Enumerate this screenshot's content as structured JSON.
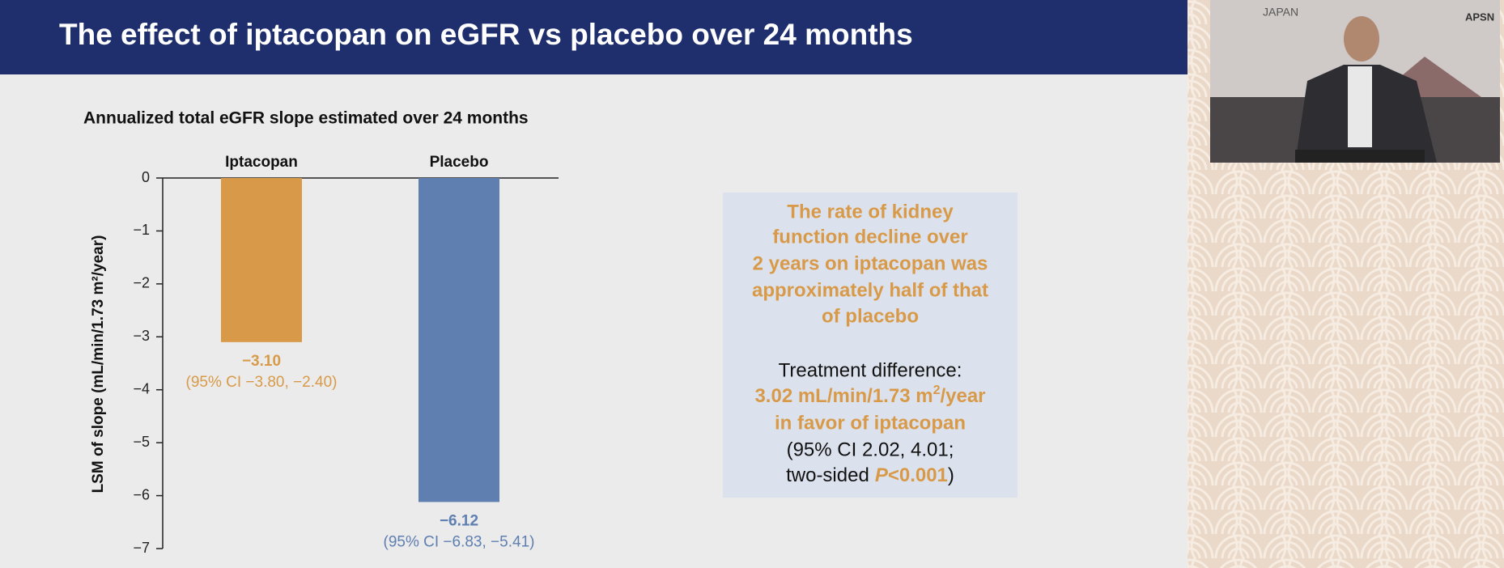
{
  "slide": {
    "title": "The effect of iptacopan on eGFR vs placebo over 24 months"
  },
  "chart_data": {
    "type": "bar",
    "title": "Annualized total eGFR slope estimated over 24 months",
    "y_label": "LSM of slope (mL/min/1.73 m²/year)",
    "categories": [
      "Iptacopan",
      "Placebo"
    ],
    "values": [
      -3.1,
      -6.12
    ],
    "value_labels": [
      "−3.10",
      "−6.12"
    ],
    "annotations": [
      "(95% CI −3.80, −2.40)",
      "(95% CI −6.83, −5.41)"
    ],
    "colors": [
      "#d89a48",
      "#5f7fb1"
    ],
    "ylim": [
      -7,
      0
    ],
    "yticks": [
      0,
      {
        "value": -1,
        "label": "−1"
      },
      {
        "value": -2,
        "label": "−2"
      },
      {
        "value": -3,
        "label": "−3"
      },
      {
        "value": -4,
        "label": "−4"
      },
      {
        "value": -5,
        "label": "−5"
      },
      {
        "value": -6,
        "label": "−6"
      },
      {
        "value": -7,
        "label": "−7"
      }
    ]
  },
  "callout": {
    "headline": [
      "The rate of kidney",
      "function decline over",
      "2 years on iptacopan was",
      "approximately half of that",
      "of placebo"
    ],
    "difference_label": "Treatment difference:",
    "difference_value": "3.02 mL/min/1.73 m",
    "difference_sup": "2",
    "difference_unit": "/year",
    "favor": "in favor of iptacopan",
    "ci": "(95% CI 2.02, 4.01;",
    "p_prefix": "two-sided",
    "p_italic": "P",
    "p_value": "<0.001",
    "p_close": ")"
  },
  "video": {
    "city": "JAPAN",
    "logo": "APSN"
  }
}
